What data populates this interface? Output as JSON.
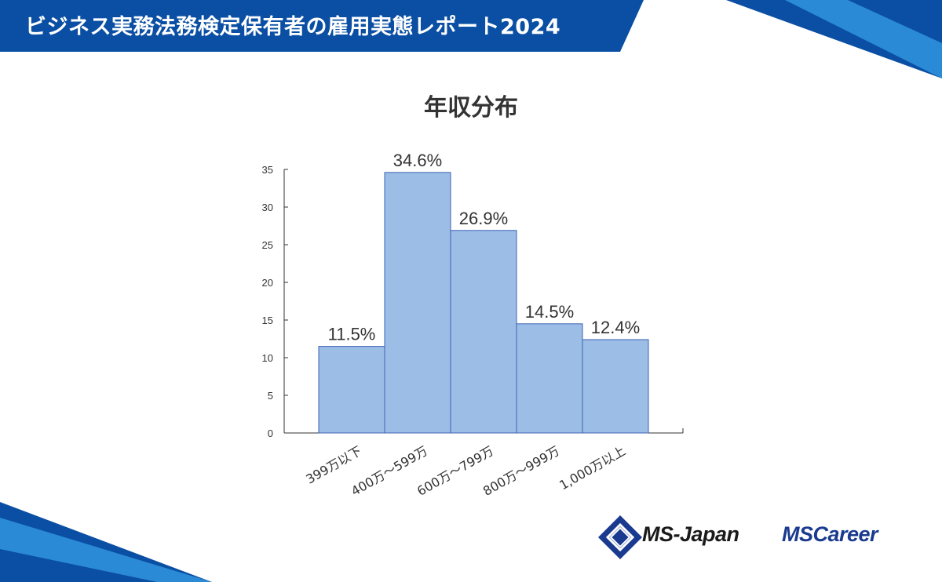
{
  "header": {
    "title": "ビジネス実務法務検定保有者の雇用実態レポート2024"
  },
  "colors": {
    "banner_dark": "#0a4fa3",
    "banner_light": "#2a8ad6",
    "bar_fill": "#9bbde6",
    "bar_stroke": "#3f63b5",
    "logo_blue": "#1a3a8f"
  },
  "chart_data": {
    "type": "bar",
    "title": "年収分布",
    "categories": [
      "399万以下",
      "400万～599万",
      "600万～799万",
      "800万～999万",
      "1,000万以上"
    ],
    "values": [
      11.5,
      34.6,
      26.9,
      14.5,
      12.4
    ],
    "data_labels": [
      "11.5%",
      "34.6%",
      "26.9%",
      "14.5%",
      "12.4%"
    ],
    "yticks": [
      "0",
      "5",
      "10",
      "15",
      "20",
      "25",
      "30",
      "35"
    ],
    "ylim": [
      0,
      35
    ],
    "xlabel": "",
    "ylabel": "",
    "grid": false
  },
  "logos": {
    "msjapan": "MS-Japan",
    "mscareer": "MSCareer"
  }
}
